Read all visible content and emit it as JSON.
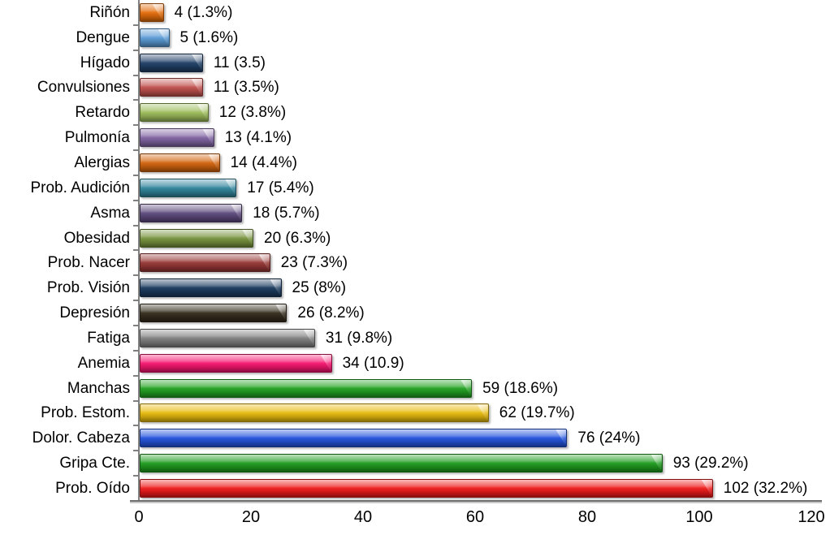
{
  "chart_data": {
    "type": "bar",
    "orientation": "horizontal",
    "title": "",
    "xlabel": "",
    "ylabel": "",
    "grid": false,
    "legend": false,
    "background": "#FFFFFF",
    "axis_color": "#808080",
    "xlim": [
      0,
      120
    ],
    "x_ticks": [
      "0",
      "20",
      "40",
      "60",
      "80",
      "100",
      "120"
    ],
    "categories": [
      "Riñón",
      "Dengue",
      "Hígado",
      "Convulsiones",
      "Retardo",
      "Pulmonía",
      "Alergias",
      "Prob. Audición",
      "Asma",
      "Obesidad",
      "Prob. Nacer",
      "Prob. Visión",
      "Depresión",
      "Fatiga",
      "Anemia",
      "Manchas",
      "Prob. Estom.",
      "Dolor. Cabeza",
      "Gripa Cte.",
      "Prob. Oído"
    ],
    "values": [
      4,
      5,
      11,
      11,
      12,
      13,
      14,
      17,
      18,
      20,
      23,
      25,
      26,
      31,
      34,
      59,
      62,
      76,
      93,
      102
    ],
    "value_labels": [
      "4 (1.3%)",
      "5 (1.6%)",
      "11 (3.5)",
      "11 (3.5%)",
      "12 (3.8%)",
      "13 (4.1%)",
      "14 (4.4%)",
      "17 (5.4%)",
      "18 (5.7%)",
      "20 (6.3%)",
      "23 (7.3%)",
      "25 (8%)",
      "26 (8.2%)",
      "31 (9.8%)",
      "34 (10.9)",
      "59 (18.6%)",
      "62 (19.7%)",
      "76 (24%)",
      "93 (29.2%)",
      "102 (32.2%)"
    ],
    "bar_colors": [
      "#E36C0A",
      "#5B9BD5",
      "#1F3F66",
      "#C0504D",
      "#9BBB59",
      "#8064A2",
      "#D2640E",
      "#31859C",
      "#5D4A7D",
      "#76923C",
      "#963634",
      "#1A3A5E",
      "#342C1C",
      "#7F7F7F",
      "#F5156F",
      "#22A121",
      "#E7BA0D",
      "#2353DC",
      "#1E9C1E",
      "#EE1A1A"
    ]
  }
}
